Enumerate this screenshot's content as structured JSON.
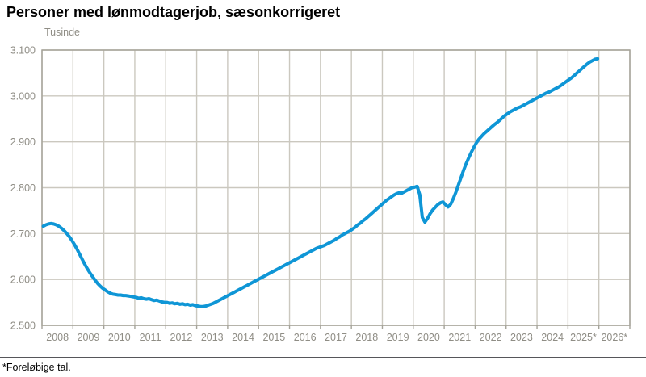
{
  "title": "Personer med lønmodtagerjob, sæsonkorrigeret",
  "footnote": "*Foreløbige tal.",
  "colors": {
    "line": "#0f96d6",
    "grid": "#cbc8bf",
    "axis": "#a5a399",
    "tick_label": "#8f8d85",
    "title_text": "#000000",
    "divider": "#56565a",
    "background": "#ffffff"
  },
  "chart_data": {
    "type": "line",
    "title": "Personer med lønmodtagerjob, sæsonkorrigeret",
    "unit_label": "Tusinde",
    "xlabel": "",
    "ylabel": "Tusinde",
    "ylim": [
      2500,
      3100
    ],
    "grid": true,
    "legend": "none",
    "y_ticks": [
      {
        "label": "3.100",
        "value": 3100
      },
      {
        "label": "3.000",
        "value": 3000
      },
      {
        "label": "2.900",
        "value": 2900
      },
      {
        "label": "2.800",
        "value": 2800
      },
      {
        "label": "2.700",
        "value": 2700
      },
      {
        "label": "2.600",
        "value": 2600
      },
      {
        "label": "2.500",
        "value": 2500
      }
    ],
    "x_labels": [
      "2008",
      "2009",
      "2010",
      "2011",
      "2012",
      "2013",
      "2014",
      "2015",
      "2016",
      "2017",
      "2018",
      "2019",
      "2020",
      "2021",
      "2022",
      "2023",
      "2024",
      "2025*",
      "2026*"
    ],
    "x_axis_years_shown": 19,
    "series": [
      {
        "name": "Personer med lønmodtagerjob, sæsonkorrigeret",
        "color": "#0f96d6",
        "frequency": "monthly",
        "start": "2008-01",
        "end": "2025-12",
        "values_by_year": {
          "2008": [
            2716,
            2719,
            2721,
            2722,
            2721,
            2719,
            2716,
            2712,
            2707,
            2701,
            2694,
            2686
          ],
          "2009": [
            2677,
            2667,
            2656,
            2645,
            2634,
            2624,
            2615,
            2607,
            2599,
            2592,
            2586,
            2581
          ],
          "2010": [
            2577,
            2573,
            2570,
            2568,
            2567,
            2566,
            2566,
            2565,
            2565,
            2564,
            2563,
            2562
          ],
          "2011": [
            2561,
            2559,
            2560,
            2558,
            2557,
            2558,
            2556,
            2554,
            2555,
            2553,
            2551,
            2550
          ],
          "2012": [
            2550,
            2548,
            2549,
            2547,
            2548,
            2546,
            2547,
            2545,
            2546,
            2544,
            2545,
            2543
          ],
          "2013": [
            2542,
            2541,
            2541,
            2542,
            2544,
            2546,
            2548,
            2551,
            2554,
            2557,
            2560,
            2563
          ],
          "2014": [
            2566,
            2569,
            2572,
            2575,
            2578,
            2581,
            2584,
            2587,
            2590,
            2593,
            2596,
            2599
          ],
          "2015": [
            2602,
            2605,
            2608,
            2611,
            2614,
            2617,
            2620,
            2623,
            2626,
            2629,
            2632,
            2635
          ],
          "2016": [
            2638,
            2641,
            2644,
            2647,
            2650,
            2653,
            2656,
            2659,
            2662,
            2665,
            2668,
            2670
          ],
          "2017": [
            2672,
            2674,
            2677,
            2680,
            2683,
            2686,
            2690,
            2693,
            2697,
            2700,
            2703,
            2706
          ],
          "2018": [
            2710,
            2714,
            2719,
            2723,
            2728,
            2732,
            2737,
            2742,
            2747,
            2752,
            2757,
            2762
          ],
          "2019": [
            2767,
            2772,
            2776,
            2780,
            2784,
            2787,
            2789,
            2788,
            2791,
            2794,
            2797,
            2800
          ],
          "2020": [
            2801,
            2803,
            2785,
            2735,
            2725,
            2733,
            2743,
            2751,
            2757,
            2763,
            2767,
            2769
          ],
          "2021": [
            2763,
            2758,
            2764,
            2776,
            2790,
            2806,
            2822,
            2838,
            2852,
            2865,
            2877,
            2888
          ],
          "2022": [
            2898,
            2906,
            2912,
            2918,
            2923,
            2928,
            2933,
            2938,
            2942,
            2947,
            2952,
            2957
          ],
          "2023": [
            2961,
            2965,
            2968,
            2971,
            2974,
            2976,
            2979,
            2982,
            2985,
            2988,
            2991,
            2994
          ],
          "2024": [
            2997,
            3000,
            3003,
            3006,
            3008,
            3011,
            3014,
            3017,
            3020,
            3024,
            3028,
            3032
          ],
          "2025": [
            3036,
            3040,
            3045,
            3050,
            3055,
            3060,
            3065,
            3070,
            3074,
            3077,
            3080,
            3081
          ]
        }
      }
    ]
  }
}
